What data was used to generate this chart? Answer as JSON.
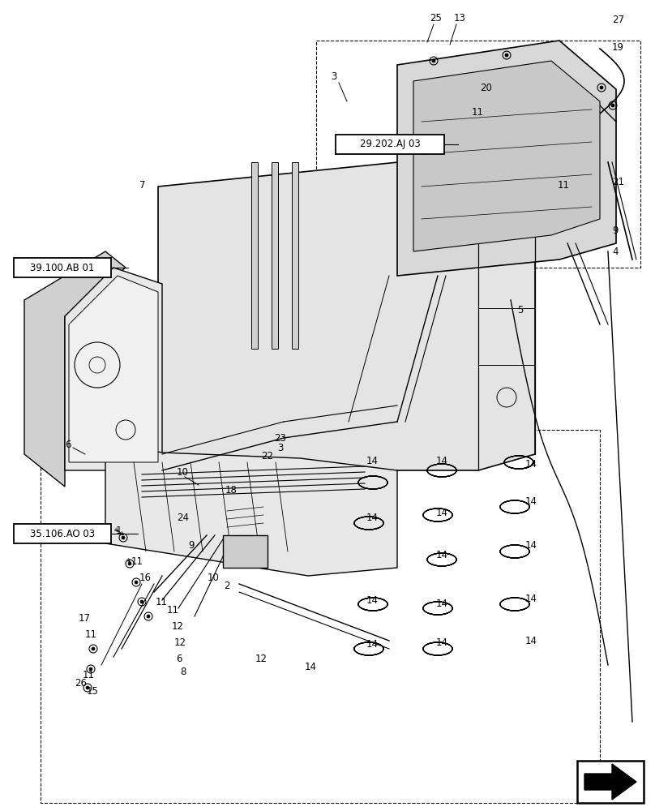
{
  "bg_color": "#ffffff",
  "fig_width": 8.08,
  "fig_height": 10.0,
  "dpi": 100,
  "labels": {
    "box1": "29.202.AJ 03",
    "box2": "39.100.AB 01",
    "box3": "35.106.AO 03"
  }
}
